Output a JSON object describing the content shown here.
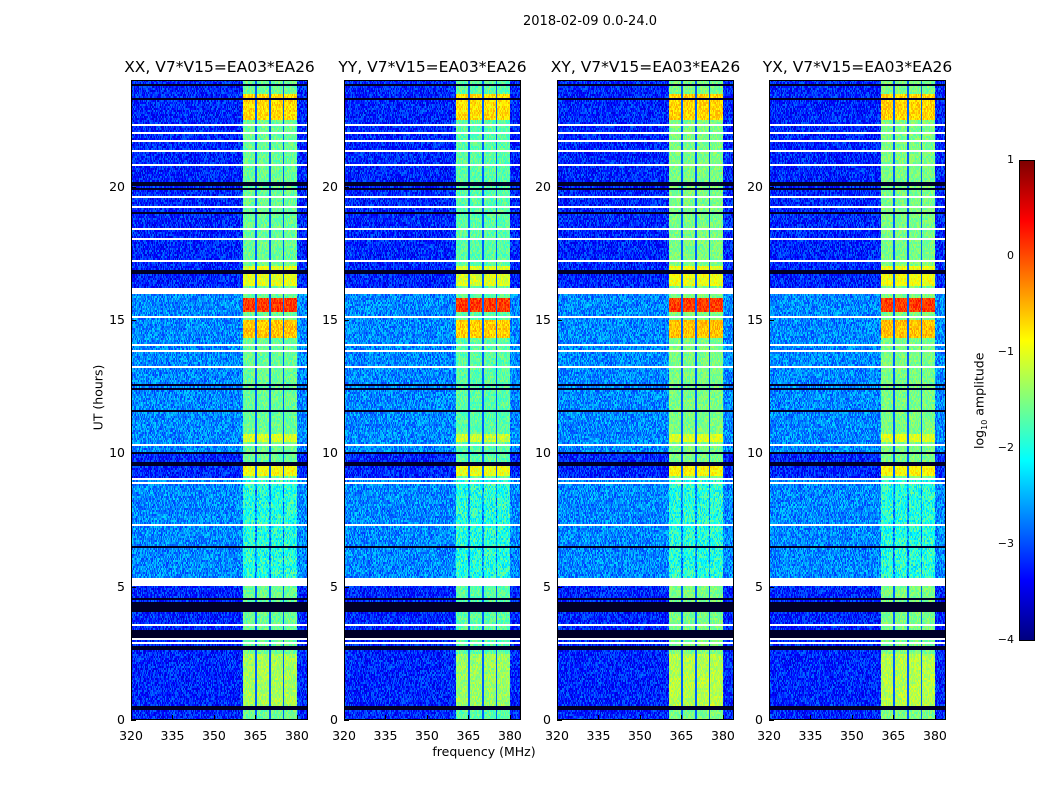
{
  "chart_data": {
    "type": "heatmap",
    "title": "2018-02-09 0.0-24.0",
    "panels": [
      {
        "title": "XX, V7*V15=EA03*EA26",
        "scale": 1.0
      },
      {
        "title": "YY, V7*V15=EA03*EA26",
        "scale": 1.05
      },
      {
        "title": "XY, V7*V15=EA03*EA26",
        "scale": 0.95
      },
      {
        "title": "YX, V7*V15=EA03*EA26",
        "scale": 0.95
      }
    ],
    "xlabel": "frequency (MHz)",
    "ylabel": "UT (hours)",
    "xlim": [
      320,
      384
    ],
    "ylim": [
      0,
      24
    ],
    "xticks": [
      "320",
      "335",
      "350",
      "365",
      "380"
    ],
    "yticks": [
      "0",
      "5",
      "10",
      "15",
      "20"
    ],
    "colorbar": {
      "label_main": "log",
      "label_sub": "10",
      "label_rest": " amplitude",
      "colormap": "jet",
      "range": [
        -4,
        1
      ],
      "ticks": [
        "1",
        "0",
        "−1",
        "−2",
        "−3",
        "−4"
      ]
    },
    "background_level": -3.2,
    "band_level": -1.6,
    "rfi_bands_mhz": [
      [
        360.5,
        365
      ],
      [
        365.5,
        370
      ],
      [
        370.5,
        375
      ],
      [
        375.5,
        380
      ]
    ],
    "bright_periods": [
      {
        "hours": [
          15.3,
          15.8
        ],
        "level": 0.1
      },
      {
        "hours": [
          14.3,
          15.0
        ],
        "level": -0.6
      },
      {
        "hours": [
          9.15,
          9.55
        ],
        "level": -0.9
      },
      {
        "hours": [
          10.4,
          10.7
        ],
        "level": -1.1
      },
      {
        "hours": [
          16.3,
          17.0
        ],
        "level": -1.0
      },
      {
        "hours": [
          22.5,
          23.5
        ],
        "level": -0.7
      },
      {
        "hours": [
          0.5,
          2.5
        ],
        "level": -1.3
      }
    ],
    "quiet_band_periods": [
      [
        5.3,
        9.0
      ]
    ],
    "white_gaps_hours": [
      [
        5.05,
        5.3
      ],
      [
        15.95,
        16.2
      ],
      [
        15.8,
        15.85
      ],
      [
        3.55,
        3.6
      ],
      [
        2.85,
        2.9
      ],
      [
        3.0,
        3.05
      ],
      [
        8.6,
        8.65
      ],
      [
        8.85,
        8.9
      ],
      [
        9.0,
        9.05
      ],
      [
        7.3,
        7.35
      ],
      [
        10.3,
        10.35
      ],
      [
        12.2,
        12.25
      ],
      [
        13.2,
        13.25
      ],
      [
        13.8,
        13.85
      ],
      [
        14.05,
        14.1
      ],
      [
        15.1,
        15.15
      ],
      [
        18.0,
        18.05
      ],
      [
        18.4,
        18.45
      ],
      [
        19.2,
        19.25
      ],
      [
        19.6,
        19.65
      ],
      [
        20.8,
        20.85
      ],
      [
        21.3,
        21.35
      ],
      [
        21.7,
        21.75
      ],
      [
        22.0,
        22.05
      ],
      [
        22.3,
        22.35
      ],
      [
        22.55,
        22.6
      ],
      [
        17.2,
        17.25
      ],
      [
        17.6,
        17.65
      ]
    ],
    "dark_lines_hours": [
      0.45,
      2.7,
      3.15,
      3.3,
      4.1,
      4.2,
      4.3,
      4.4,
      4.55,
      6.5,
      9.6,
      10.0,
      11.6,
      12.4,
      12.55,
      16.8,
      19.0,
      19.9,
      20.1,
      23.3,
      23.8
    ]
  }
}
